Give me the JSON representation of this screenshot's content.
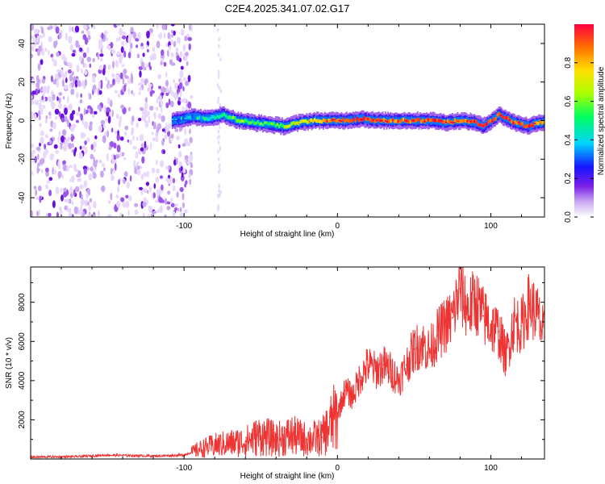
{
  "title": "C2E4.2025.341.07.02.G17",
  "chart_data": [
    {
      "type": "heatmap",
      "title": "C2E4.2025.341.07.02.G17",
      "xlabel": "Height of straight line (km)",
      "ylabel": "Frequency (Hz)",
      "xlim": [
        -200,
        135
      ],
      "ylim": [
        -50,
        50
      ],
      "xticks": [
        -100,
        0,
        100
      ],
      "yticks": [
        -40,
        -20,
        0,
        20,
        40
      ],
      "colorbar": {
        "label": "Normalized spectral amplitude",
        "range": [
          0,
          1
        ],
        "ticks": [
          0.0,
          0.2,
          0.4,
          0.6,
          0.8
        ],
        "tick_labels": [
          "0.0",
          "0.2",
          "0.4",
          "0.6",
          "0.8"
        ]
      },
      "noise_region": {
        "x_range": [
          -200,
          -95
        ],
        "freq_range": [
          -50,
          50
        ],
        "amplitude": 0.1
      },
      "ridge": {
        "x_start": -108,
        "x": [
          -108,
          -95,
          -85,
          -75,
          -65,
          -55,
          -45,
          -35,
          -25,
          -15,
          -5,
          5,
          15,
          25,
          35,
          45,
          55,
          62,
          70,
          80,
          90,
          95,
          100,
          105,
          110,
          115,
          120,
          125,
          130,
          135
        ],
        "freq": [
          0,
          2,
          1,
          3,
          0,
          -1,
          -2,
          -3,
          -1,
          0,
          0,
          0,
          1,
          0,
          0,
          0,
          0,
          0,
          -1,
          0,
          -1,
          -3,
          0,
          3,
          1,
          -1,
          -2,
          -3,
          -1,
          -1
        ],
        "amplitude": [
          0.25,
          0.35,
          0.4,
          0.5,
          0.55,
          0.5,
          0.45,
          0.6,
          0.65,
          0.7,
          0.85,
          0.9,
          0.95,
          0.9,
          0.85,
          0.85,
          0.9,
          0.95,
          0.9,
          0.85,
          0.9,
          0.95,
          0.9,
          0.9,
          0.95,
          0.85,
          0.9,
          0.95,
          0.85,
          0.8
        ]
      }
    },
    {
      "type": "line",
      "xlabel": "Height of straight line (km)",
      "ylabel": "SNR (10 * v/v)",
      "xlim": [
        -200,
        135
      ],
      "ylim": [
        0,
        9800
      ],
      "xticks": [
        -100,
        0,
        100
      ],
      "yticks": [
        2000,
        4000,
        6000,
        8000
      ],
      "color": "#ee3333",
      "series": [
        {
          "name": "SNR",
          "x": [
            -200,
            -170,
            -150,
            -120,
            -100,
            -90,
            -80,
            -70,
            -60,
            -50,
            -40,
            -30,
            -20,
            -10,
            0,
            5,
            10,
            15,
            20,
            25,
            30,
            35,
            40,
            45,
            50,
            55,
            60,
            65,
            70,
            75,
            80,
            85,
            90,
            95,
            100,
            105,
            110,
            115,
            120,
            125,
            130,
            135
          ],
          "values": [
            100,
            120,
            200,
            150,
            200,
            500,
            700,
            800,
            900,
            1200,
            1000,
            1200,
            1000,
            1100,
            2300,
            3500,
            3200,
            4200,
            4800,
            4500,
            4800,
            4500,
            4000,
            4800,
            5600,
            5900,
            5500,
            6300,
            6800,
            7200,
            8700,
            7600,
            8100,
            7300,
            6800,
            6500,
            5200,
            7000,
            6800,
            7900,
            7400,
            6200
          ]
        }
      ]
    }
  ]
}
